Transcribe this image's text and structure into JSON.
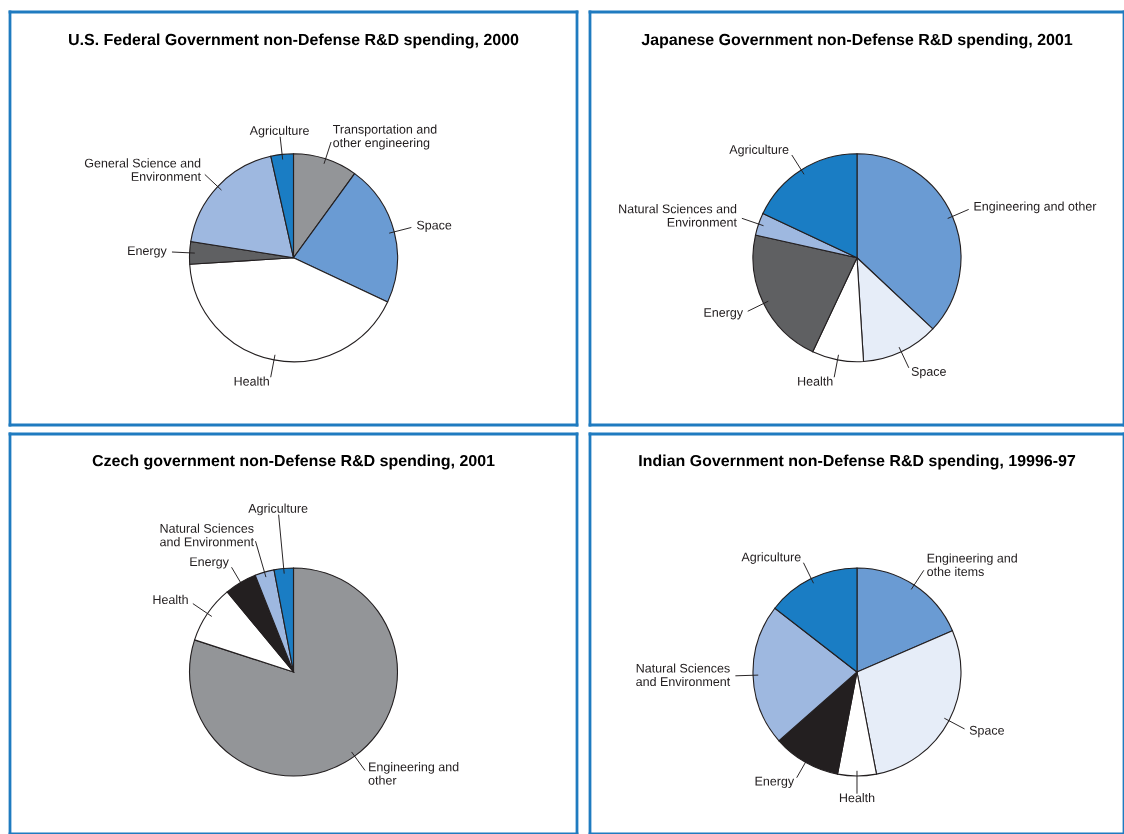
{
  "chart_data": [
    {
      "type": "pie",
      "title": "U.S. Federal Government non-Defense R&D spending, 2000",
      "categories": [
        "Transportation and\nother engineering",
        "Space",
        "Health",
        "Energy",
        "General Science and\nEnvironment",
        "Agriculture"
      ],
      "values": [
        10,
        22,
        42,
        3.5,
        19,
        3.5
      ],
      "colors": [
        "#939598",
        "#6a9bd3",
        "#ffffff",
        "#5f6062",
        "#9eb8e0",
        "#1a7dc4"
      ]
    },
    {
      "type": "pie",
      "title": "Japanese Government non-Defense R&D spending, 2001",
      "categories": [
        "Engineering and other",
        "Space",
        "Health",
        "Energy",
        "Natural Sciences and\nEnvironment",
        "Agriculture"
      ],
      "values": [
        37,
        12,
        8,
        21.5,
        3.5,
        18
      ],
      "colors": [
        "#6a9bd3",
        "#e6edf8",
        "#ffffff",
        "#5f6062",
        "#9eb8e0",
        "#1a7dc4"
      ]
    },
    {
      "type": "pie",
      "title": "Czech government non-Defense R&D spending, 2001",
      "categories": [
        "Engineering and\nother",
        "Health",
        "Energy",
        "Natural Sciences\nand Environment",
        "Agriculture"
      ],
      "values": [
        80,
        9,
        5,
        3,
        3
      ],
      "colors": [
        "#939598",
        "#ffffff",
        "#231f20",
        "#9eb8e0",
        "#1a7dc4"
      ]
    },
    {
      "type": "pie",
      "title": "Indian Government non-Defense R&D spending, 19996-97",
      "categories": [
        "Engineering and\nothe items",
        "Space",
        "Health",
        "Energy",
        "Natural Sciences\nand Environment",
        "Agriculture"
      ],
      "values": [
        18.5,
        28.5,
        6,
        10.5,
        22,
        14.5
      ],
      "colors": [
        "#6a9bd3",
        "#e6edf8",
        "#ffffff",
        "#231f20",
        "#9eb8e0",
        "#1a7dc4"
      ]
    }
  ]
}
